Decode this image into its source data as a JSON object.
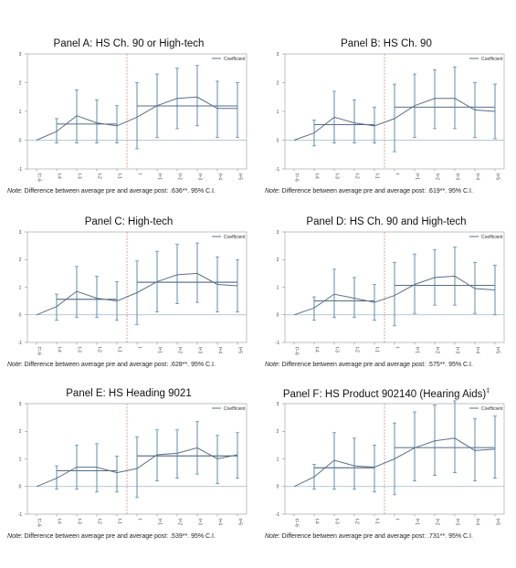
{
  "x_labels": [
    "t=-6",
    "t-4",
    "t-3",
    "t-2",
    "t-1",
    "t",
    "t+1",
    "t+2",
    "t+3",
    "t+4",
    "t+5"
  ],
  "y_ticks": [
    -1,
    0,
    1,
    2,
    3
  ],
  "legend_label": "Coefficient",
  "colors": {
    "line": "#5a6f84",
    "ci": "#4d81a5",
    "avg": "#1f3a58",
    "event": "#c07e74",
    "ref": "#9fb8c9"
  },
  "chart_data": [
    {
      "type": "line",
      "title": "Panel A: HS Ch. 90 or High-tech",
      "note_prefix": "Note",
      "note_text": ": Difference between average pre and average post: .636**. 95% C.I.",
      "ylim": [
        -1,
        3
      ],
      "values": [
        0,
        0.3,
        0.85,
        0.6,
        0.5,
        0.8,
        1.2,
        1.45,
        1.5,
        1.1,
        1.1
      ],
      "ci_lower": [
        0,
        -0.1,
        -0.1,
        -0.1,
        -0.1,
        -0.3,
        0.1,
        0.4,
        0.5,
        0.1,
        0.1
      ],
      "ci_upper": [
        0,
        0.75,
        1.75,
        1.4,
        1.2,
        2.0,
        2.3,
        2.5,
        2.6,
        2.05,
        2.0
      ],
      "pre_average": 0.56,
      "post_average": 1.19,
      "legend": [
        "Coefficient"
      ]
    },
    {
      "type": "line",
      "title": "Panel B: HS Ch. 90",
      "note_prefix": "Note",
      "note_text": ": Difference between average pre and average post: .619**. 95% C.I.",
      "ylim": [
        -1,
        3
      ],
      "values": [
        0,
        0.25,
        0.8,
        0.6,
        0.5,
        0.75,
        1.2,
        1.45,
        1.45,
        1.05,
        1.0
      ],
      "ci_lower": [
        0,
        -0.2,
        -0.1,
        -0.1,
        -0.1,
        -0.4,
        0.1,
        0.4,
        0.4,
        0.1,
        0.05
      ],
      "ci_upper": [
        0,
        0.7,
        1.7,
        1.4,
        1.15,
        1.95,
        2.3,
        2.45,
        2.55,
        2.0,
        1.95
      ],
      "pre_average": 0.54,
      "post_average": 1.15,
      "legend": [
        "Coefficient"
      ]
    },
    {
      "type": "line",
      "title": "Panel C: High-tech",
      "note_prefix": "Note",
      "note_text": ": Difference between average pre and average post: .628**. 95% C.I.",
      "ylim": [
        -1,
        3
      ],
      "values": [
        0,
        0.3,
        0.85,
        0.6,
        0.5,
        0.8,
        1.2,
        1.45,
        1.5,
        1.1,
        1.05
      ],
      "ci_lower": [
        0,
        -0.2,
        -0.1,
        -0.1,
        -0.2,
        -0.35,
        0.1,
        0.4,
        0.45,
        0.1,
        0.1
      ],
      "ci_upper": [
        0,
        0.75,
        1.75,
        1.4,
        1.2,
        1.95,
        2.3,
        2.55,
        2.6,
        2.1,
        2.0
      ],
      "pre_average": 0.56,
      "post_average": 1.18,
      "legend": [
        "Coefficient"
      ]
    },
    {
      "type": "line",
      "title": "Panel D: HS Ch. 90 and High-tech",
      "note_prefix": "Note",
      "note_text": ": Difference between average pre and average post: .575**. 95% C.I.",
      "ylim": [
        -1,
        3
      ],
      "values": [
        0,
        0.25,
        0.75,
        0.6,
        0.45,
        0.7,
        1.1,
        1.35,
        1.4,
        0.95,
        0.9
      ],
      "ci_lower": [
        0,
        -0.2,
        -0.1,
        -0.1,
        -0.2,
        -0.4,
        0.05,
        0.35,
        0.35,
        0.05,
        0.0
      ],
      "ci_upper": [
        0,
        0.65,
        1.65,
        1.35,
        1.1,
        1.9,
        2.2,
        2.35,
        2.45,
        1.9,
        1.8
      ],
      "pre_average": 0.5,
      "post_average": 1.07,
      "legend": [
        "Coefficient"
      ]
    },
    {
      "type": "line",
      "title": "Panel E: HS Heading 9021",
      "note_prefix": "Note",
      "note_text": ": Difference between average pre and average post: .539**. 95% C.I.",
      "ylim": [
        -1,
        3
      ],
      "values": [
        0,
        0.3,
        0.7,
        0.7,
        0.5,
        0.65,
        1.15,
        1.2,
        1.4,
        1.0,
        1.15
      ],
      "ci_lower": [
        0,
        -0.1,
        -0.1,
        -0.2,
        -0.2,
        -0.4,
        0.2,
        0.3,
        0.45,
        0.1,
        0.3
      ],
      "ci_upper": [
        0,
        0.75,
        1.5,
        1.55,
        1.1,
        1.8,
        2.05,
        2.05,
        2.35,
        1.85,
        1.95
      ],
      "pre_average": 0.57,
      "post_average": 1.11,
      "legend": [
        "Coefficient"
      ]
    },
    {
      "type": "line",
      "title": "Panel F: HS Product 902140 (Hearing Aids)",
      "title_sup": "‡",
      "note_prefix": "Note",
      "note_text": ": Difference between average pre and average post: .731**. 95% C.I.",
      "ylim": [
        -1,
        3
      ],
      "values": [
        0,
        0.35,
        0.95,
        0.75,
        0.7,
        1.0,
        1.4,
        1.65,
        1.75,
        1.3,
        1.35
      ],
      "ci_lower": [
        0,
        -0.1,
        -0.1,
        -0.1,
        -0.2,
        -0.3,
        0.2,
        0.4,
        0.5,
        0.2,
        0.3
      ],
      "ci_upper": [
        0,
        0.8,
        1.95,
        1.75,
        1.5,
        2.3,
        2.7,
        2.95,
        3.1,
        2.45,
        2.55
      ],
      "pre_average": 0.68,
      "post_average": 1.41,
      "legend": [
        "Coefficient"
      ]
    }
  ]
}
